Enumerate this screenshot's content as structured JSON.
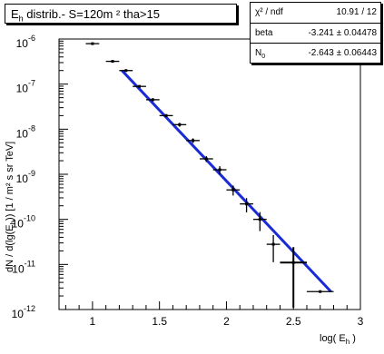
{
  "chart_data": {
    "type": "scatter",
    "title": "E",
    "title_sub": "h",
    "title_rest": " distrib.- S=120m  ² tha>15",
    "xlabel": "log( E",
    "xlabel_sub": "h",
    "xlabel_end": " )",
    "ylabel": "dN / d(lg(E",
    "ylabel_sub": "h",
    "ylabel_end": ")) [1 / m² s sr TeV]",
    "xlim": [
      0.75,
      3.0
    ],
    "ylim_log10": [
      -12,
      -6
    ],
    "y_scale": "log",
    "x_ticks": [
      "1",
      "1.5",
      "2",
      "2.5",
      "3"
    ],
    "y_ticks": [
      "10",
      "10",
      "10",
      "10",
      "10",
      "10",
      "10"
    ],
    "y_tick_exponents": [
      "-6",
      "-7",
      "-8",
      "-9",
      "-10",
      "-11",
      "-12"
    ],
    "points": [
      {
        "x": 1.0,
        "y": 7.9e-07,
        "xerr": 0.05,
        "yerr_rel": 0.05
      },
      {
        "x": 1.15,
        "y": 3.2e-07,
        "xerr": 0.05,
        "yerr_rel": 0.05
      },
      {
        "x": 1.25,
        "y": 2e-07,
        "xerr": 0.05,
        "yerr_rel": 0.06
      },
      {
        "x": 1.35,
        "y": 8.9e-08,
        "xerr": 0.05,
        "yerr_rel": 0.06
      },
      {
        "x": 1.45,
        "y": 4.5e-08,
        "xerr": 0.05,
        "yerr_rel": 0.08
      },
      {
        "x": 1.55,
        "y": 2e-08,
        "xerr": 0.05,
        "yerr_rel": 0.08
      },
      {
        "x": 1.65,
        "y": 1.26e-08,
        "xerr": 0.05,
        "yerr_rel": 0.1
      },
      {
        "x": 1.75,
        "y": 5.6e-09,
        "xerr": 0.05,
        "yerr_rel": 0.12
      },
      {
        "x": 1.85,
        "y": 2.2e-09,
        "xerr": 0.05,
        "yerr_rel": 0.15
      },
      {
        "x": 1.95,
        "y": 1.26e-09,
        "xerr": 0.05,
        "yerr_rel": 0.2
      },
      {
        "x": 2.05,
        "y": 4.5e-10,
        "xerr": 0.05,
        "yerr_rel": 0.25
      },
      {
        "x": 2.15,
        "y": 2.2e-10,
        "xerr": 0.05,
        "yerr_rel": 0.35
      },
      {
        "x": 2.25,
        "y": 1e-10,
        "xerr": 0.05,
        "yerr_rel": 0.45
      },
      {
        "x": 2.35,
        "y": 2.8e-11,
        "xerr": 0.05,
        "yerr_rel": 0.6
      },
      {
        "x": 2.5,
        "y": 1.1e-11,
        "xerr": 0.1,
        "yerr_rel": 1.2
      },
      {
        "x": 2.7,
        "y": 2.5e-12,
        "xerr": 0.1,
        "yerr_rel": 0.0
      }
    ],
    "fit": {
      "x_range": [
        1.22,
        2.78
      ],
      "y_start": 2e-07,
      "y_end": 2.5e-12,
      "color": "#1a2bd6"
    },
    "grid": false,
    "legend": "none"
  },
  "stats_box": {
    "rows": [
      {
        "name": "χ² / ndf",
        "value": "10.91 / 12"
      },
      {
        "name": "beta",
        "value": "-3.241 ± 0.04478"
      },
      {
        "name": "N",
        "name_sub": "0",
        "value": "-2.643 ± 0.06443"
      }
    ]
  }
}
